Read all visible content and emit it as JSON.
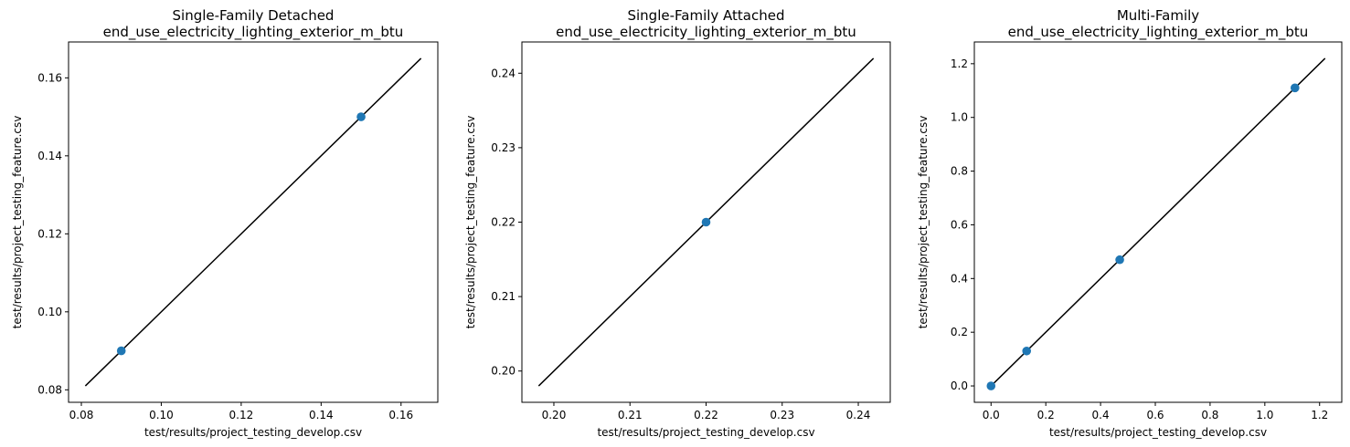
{
  "chart_data": [
    {
      "type": "scatter",
      "title": "Single-Family Detached",
      "subtitle": "end_use_electricity_lighting_exterior_m_btu",
      "xlabel": "test/results/project_testing_develop.csv",
      "ylabel": "test/results/project_testing_feature.csv",
      "xlim": [
        0.0768,
        0.1692
      ],
      "ylim": [
        0.0768,
        0.1692
      ],
      "xticks": [
        "0.08",
        "0.10",
        "0.12",
        "0.14",
        "0.16"
      ],
      "yticks": [
        "0.08",
        "0.10",
        "0.12",
        "0.14",
        "0.16"
      ],
      "points": [
        {
          "x": 0.09,
          "y": 0.09
        },
        {
          "x": 0.15,
          "y": 0.15
        }
      ],
      "reference_line": {
        "from": 0.081,
        "to": 0.165
      },
      "grid": false,
      "point_color": "#1f77b4",
      "line_color": "#000000"
    },
    {
      "type": "scatter",
      "title": "Single-Family Attached",
      "subtitle": "end_use_electricity_lighting_exterior_m_btu",
      "xlabel": "test/results/project_testing_develop.csv",
      "ylabel": "test/results/project_testing_feature.csv",
      "xlim": [
        0.1958,
        0.2442
      ],
      "ylim": [
        0.1958,
        0.2442
      ],
      "xticks": [
        "0.20",
        "0.21",
        "0.22",
        "0.23",
        "0.24"
      ],
      "yticks": [
        "0.20",
        "0.21",
        "0.22",
        "0.23",
        "0.24"
      ],
      "points": [
        {
          "x": 0.22,
          "y": 0.22
        }
      ],
      "reference_line": {
        "from": 0.198,
        "to": 0.242
      },
      "grid": false,
      "point_color": "#1f77b4",
      "line_color": "#000000"
    },
    {
      "type": "scatter",
      "title": "Multi-Family",
      "subtitle": "end_use_electricity_lighting_exterior_m_btu",
      "xlabel": "test/results/project_testing_develop.csv",
      "ylabel": "test/results/project_testing_feature.csv",
      "xlim": [
        -0.061,
        1.281
      ],
      "ylim": [
        -0.061,
        1.281
      ],
      "xticks": [
        "0.0",
        "0.2",
        "0.4",
        "0.6",
        "0.8",
        "1.0",
        "1.2"
      ],
      "yticks": [
        "0.0",
        "0.2",
        "0.4",
        "0.6",
        "0.8",
        "1.0",
        "1.2"
      ],
      "points": [
        {
          "x": 0.0,
          "y": 0.0
        },
        {
          "x": 0.13,
          "y": 0.13
        },
        {
          "x": 0.47,
          "y": 0.47
        },
        {
          "x": 1.11,
          "y": 1.11
        }
      ],
      "reference_line": {
        "from": 0.0,
        "to": 1.22
      },
      "grid": false,
      "point_color": "#1f77b4",
      "line_color": "#000000"
    }
  ]
}
